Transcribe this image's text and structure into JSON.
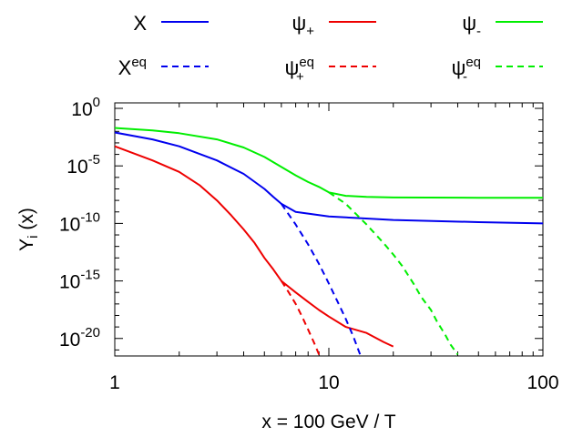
{
  "chart_data": {
    "type": "line",
    "title": "",
    "xlabel": "x = 100 GeV / T",
    "ylabel": {
      "base": "Y",
      "sub": "i",
      "rest": " (x)"
    },
    "x_scale": "log",
    "y_scale": "log",
    "xlim": [
      1,
      100
    ],
    "ylim": [
      3e-22,
      3
    ],
    "x_ticks": [
      {
        "value": 1,
        "label": "1"
      },
      {
        "value": 10,
        "label": "10"
      },
      {
        "value": 100,
        "label": "100"
      }
    ],
    "y_ticks": [
      {
        "value": 1,
        "base": "10",
        "exp": "0"
      },
      {
        "value": 1e-05,
        "base": "10",
        "exp": "-5"
      },
      {
        "value": 1e-10,
        "base": "10",
        "exp": "-10"
      },
      {
        "value": 1e-15,
        "base": "10",
        "exp": "-15"
      },
      {
        "value": 1e-20,
        "base": "10",
        "exp": "-20"
      }
    ],
    "grid": false,
    "legend_position": "top",
    "series": [
      {
        "name": {
          "base": "X",
          "sub": "",
          "sup": ""
        },
        "color": "#0000ee",
        "dash": "solid",
        "points": [
          [
            1,
            0.008
          ],
          [
            1.5,
            0.002
          ],
          [
            2,
            0.0005
          ],
          [
            3,
            3e-05
          ],
          [
            4,
            2e-06
          ],
          [
            5,
            1e-07
          ],
          [
            5.5,
            2e-08
          ],
          [
            6,
            5e-09
          ],
          [
            7,
            1e-09
          ],
          [
            10,
            4e-10
          ],
          [
            20,
            2e-10
          ],
          [
            50,
            1.3e-10
          ],
          [
            100,
            1e-10
          ]
        ]
      },
      {
        "name": {
          "base": "ψ",
          "sub": "+",
          "sup": ""
        },
        "color": "#ee0000",
        "dash": "solid",
        "points": [
          [
            1,
            0.0005
          ],
          [
            1.5,
            3e-05
          ],
          [
            2,
            3e-06
          ],
          [
            2.5,
            2e-07
          ],
          [
            3,
            1e-08
          ],
          [
            3.5,
            5e-10
          ],
          [
            4,
            3e-11
          ],
          [
            4.5,
            2e-12
          ],
          [
            5,
            1e-13
          ],
          [
            5.5,
            1e-14
          ],
          [
            6,
            1e-15
          ],
          [
            7,
            1e-16
          ],
          [
            8,
            1.5e-17
          ],
          [
            9,
            3e-18
          ],
          [
            10,
            8e-19
          ],
          [
            12,
            1e-19
          ],
          [
            15,
            3e-20
          ],
          [
            18,
            5e-21
          ],
          [
            20,
            2e-21
          ]
        ]
      },
      {
        "name": {
          "base": "ψ",
          "sub": "-",
          "sup": ""
        },
        "color": "#00ee00",
        "dash": "solid",
        "points": [
          [
            1,
            0.02
          ],
          [
            1.5,
            0.012
          ],
          [
            2,
            0.007
          ],
          [
            3,
            0.002
          ],
          [
            4,
            0.0004
          ],
          [
            5,
            6e-05
          ],
          [
            6,
            8e-06
          ],
          [
            7,
            1.5e-06
          ],
          [
            8,
            4e-07
          ],
          [
            9,
            1.5e-07
          ],
          [
            10,
            5e-08
          ],
          [
            12,
            2.5e-08
          ],
          [
            15,
            2e-08
          ],
          [
            20,
            1.8e-08
          ],
          [
            50,
            1.7e-08
          ],
          [
            100,
            1.7e-08
          ]
        ]
      },
      {
        "name": {
          "base": "X",
          "sub": "",
          "sup": "eq"
        },
        "color": "#0000ee",
        "dash": "dashed",
        "points": [
          [
            6,
            5e-09
          ],
          [
            7,
            8e-11
          ],
          [
            8,
            1.5e-12
          ],
          [
            9,
            3e-14
          ],
          [
            10,
            6e-16
          ],
          [
            11,
            1.5e-17
          ],
          [
            12,
            5e-19
          ],
          [
            13,
            1.5e-20
          ],
          [
            14,
            4e-22
          ]
        ]
      },
      {
        "name": {
          "base": "ψ",
          "sub": "+",
          "sup": "eq"
        },
        "color": "#ee0000",
        "dash": "dashed",
        "points": [
          [
            6,
            1e-15
          ],
          [
            6.5,
            1e-16
          ],
          [
            7,
            1e-17
          ],
          [
            7.5,
            8e-19
          ],
          [
            8,
            6e-20
          ],
          [
            8.5,
            5e-21
          ],
          [
            9,
            4e-22
          ],
          [
            9.2,
            2e-22
          ]
        ]
      },
      {
        "name": {
          "base": "ψ",
          "sub": "-",
          "sup": "eq"
        },
        "color": "#00ee00",
        "dash": "dashed",
        "points": [
          [
            10,
            5e-08
          ],
          [
            12,
            5e-09
          ],
          [
            15,
            8e-11
          ],
          [
            18,
            2e-12
          ],
          [
            20,
            2e-13
          ],
          [
            22,
            2e-14
          ],
          [
            25,
            5e-16
          ],
          [
            27,
            4e-17
          ],
          [
            30,
            3e-18
          ],
          [
            32,
            3e-19
          ],
          [
            35,
            2e-20
          ],
          [
            37,
            3e-21
          ],
          [
            40,
            4e-22
          ]
        ]
      }
    ]
  }
}
